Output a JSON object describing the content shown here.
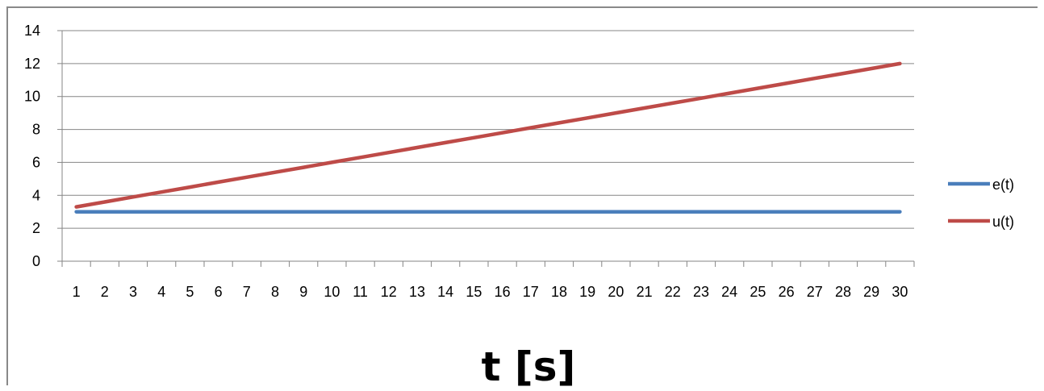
{
  "chart_data": {
    "type": "line",
    "title": "",
    "xlabel": "t [s]",
    "ylabel": "",
    "categories": [
      "1",
      "2",
      "3",
      "4",
      "5",
      "6",
      "7",
      "8",
      "9",
      "10",
      "11",
      "12",
      "13",
      "14",
      "15",
      "16",
      "17",
      "18",
      "19",
      "20",
      "21",
      "22",
      "23",
      "24",
      "25",
      "26",
      "27",
      "28",
      "29",
      "30"
    ],
    "ylim": [
      0,
      14
    ],
    "yticks": [
      0,
      2,
      4,
      6,
      8,
      10,
      12,
      14
    ],
    "grid": true,
    "legend_position": "right",
    "series": [
      {
        "name": "e(t)",
        "color": "#4a7ebb",
        "values": [
          3,
          3,
          3,
          3,
          3,
          3,
          3,
          3,
          3,
          3,
          3,
          3,
          3,
          3,
          3,
          3,
          3,
          3,
          3,
          3,
          3,
          3,
          3,
          3,
          3,
          3,
          3,
          3,
          3,
          3
        ]
      },
      {
        "name": "u(t)",
        "color": "#be4b48",
        "values": [
          3.3,
          3.6,
          3.9,
          4.2,
          4.5,
          4.8,
          5.1,
          5.4,
          5.7,
          6.0,
          6.3,
          6.6,
          6.9,
          7.2,
          7.5,
          7.8,
          8.1,
          8.4,
          8.7,
          9.0,
          9.3,
          9.6,
          9.9,
          10.2,
          10.5,
          10.8,
          11.1,
          11.4,
          11.7,
          12.0
        ]
      }
    ]
  }
}
